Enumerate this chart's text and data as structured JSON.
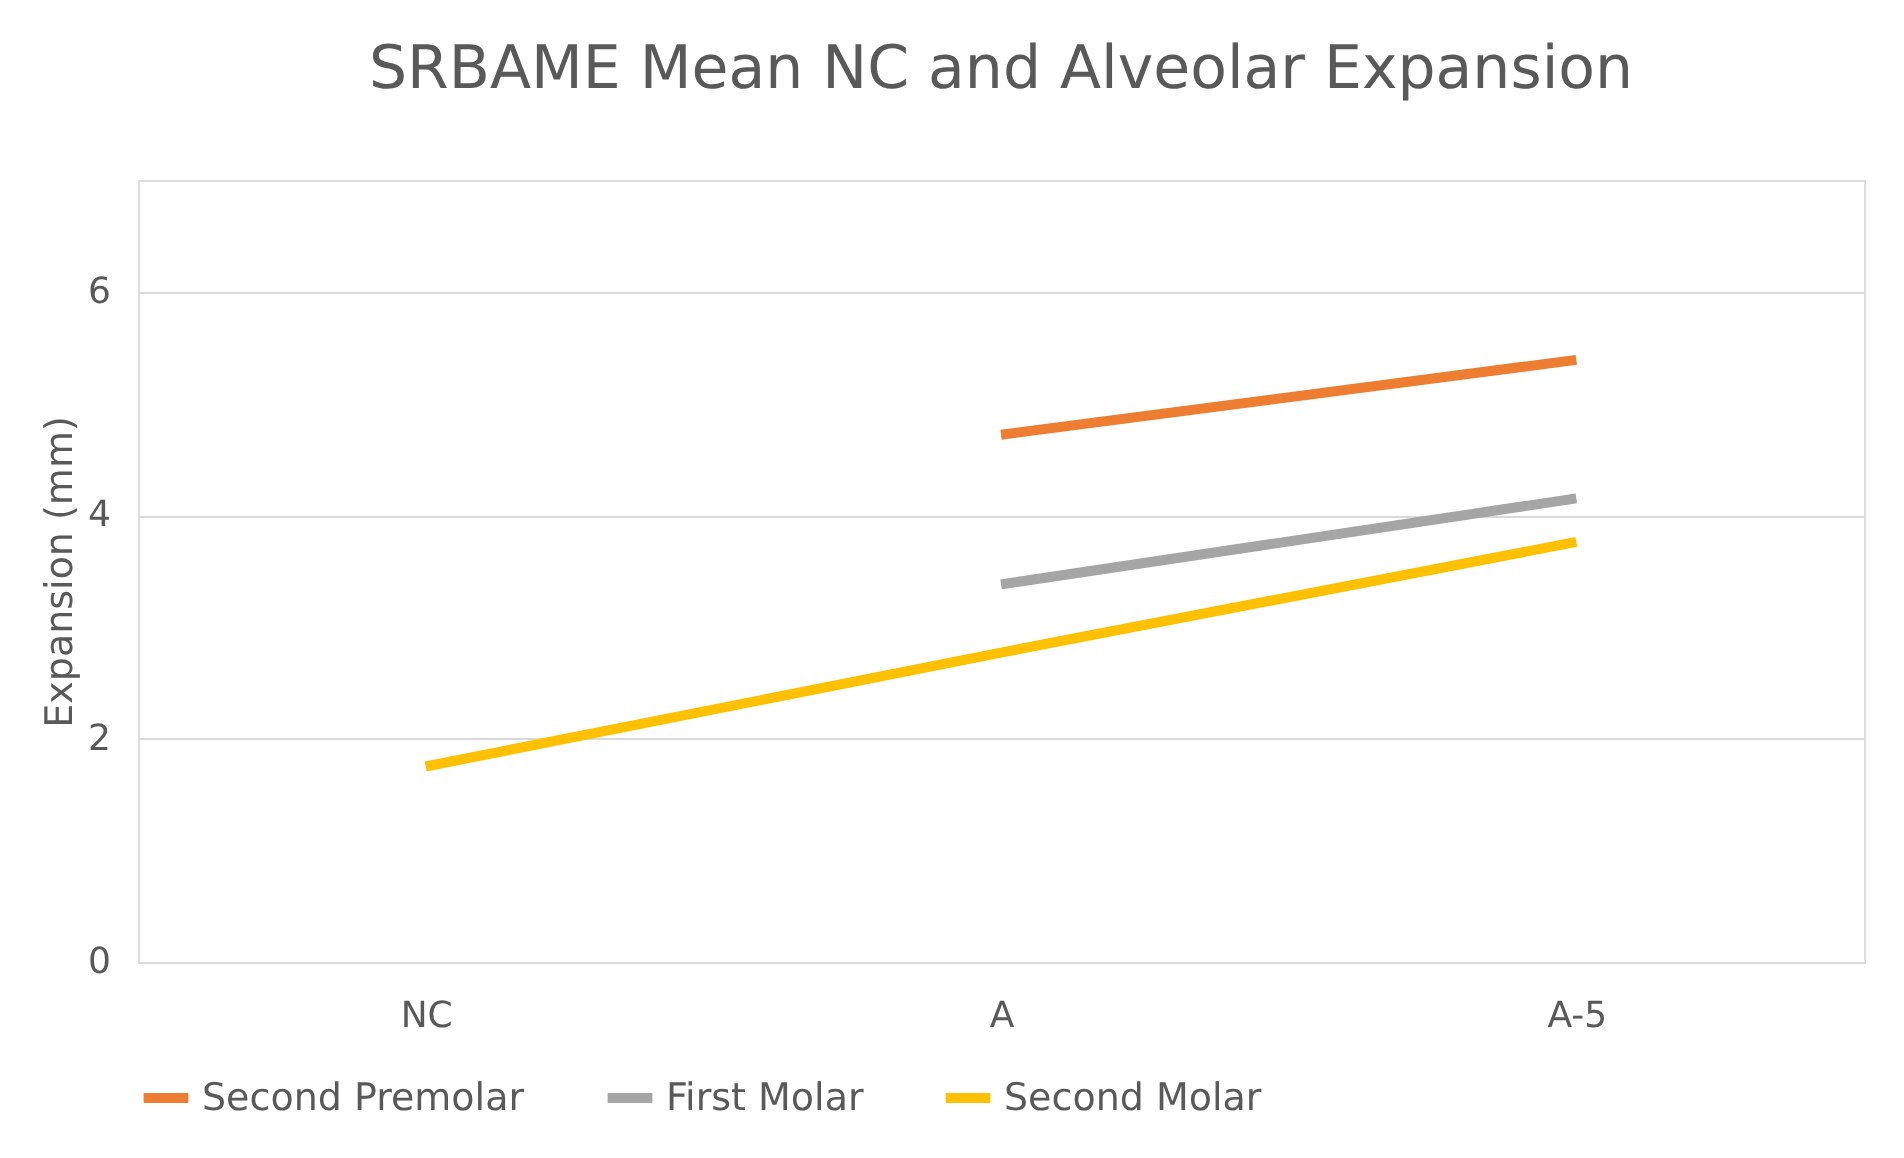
{
  "chart_data": {
    "type": "line",
    "title": "SRBAME Mean NC and Alveolar Expansion",
    "ylabel": "Expansion (mm)",
    "categories": [
      "NC",
      "A",
      "A-5"
    ],
    "series": [
      {
        "name": "Second Premolar",
        "color": "#ed7d31",
        "values": [
          null,
          4.72,
          5.39
        ]
      },
      {
        "name": "First Molar",
        "color": "#a5a5a5",
        "values": [
          null,
          3.38,
          4.15
        ]
      },
      {
        "name": "Second Molar",
        "color": "#ffc000",
        "values": [
          1.75,
          2.77,
          3.76
        ]
      }
    ],
    "ylim": [
      0,
      7
    ],
    "yticks": [
      0,
      2,
      4,
      6
    ],
    "grid": "y",
    "legend": "bottom",
    "marker": "none",
    "line_style": "solid"
  }
}
